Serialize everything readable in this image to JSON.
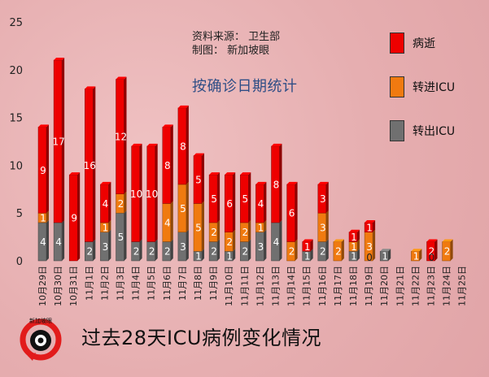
{
  "source": {
    "line1": "资料来源： 卫生部",
    "line2": "制图： 新加坡眼"
  },
  "subtitle": "按确诊日期统计",
  "bottom_title": "过去28天ICU病例变化情况",
  "logo_text": "新加坡眼",
  "legend": [
    {
      "label": "病逝",
      "color": "#ee0000"
    },
    {
      "label": "转进ICU",
      "color": "#f07a10"
    },
    {
      "label": "转出ICU",
      "color": "#707070"
    }
  ],
  "chart_data": {
    "type": "bar",
    "stacked": true,
    "categories": [
      "10月29日",
      "10月30日",
      "10月31日",
      "11月1日",
      "11月2日",
      "11月3日",
      "11月4日",
      "11月5日",
      "11月6日",
      "11月7日",
      "11月8日",
      "11月9日",
      "11月10日",
      "11月11日",
      "11月12日",
      "11月13日",
      "11月14日",
      "11月15日",
      "11月16日",
      "11月17日",
      "11月18日",
      "11月19日",
      "11月20日",
      "11月21日",
      "11月22日",
      "11月23日",
      "11月24日",
      "11月25日"
    ],
    "ylim": [
      0,
      25
    ],
    "yticks": [
      0,
      5,
      10,
      15,
      20,
      25
    ],
    "series": [
      {
        "name": "转出ICU",
        "color": "#707070",
        "values": [
          4,
          4,
          0,
          2,
          3,
          5,
          2,
          2,
          2,
          3,
          1,
          2,
          1,
          2,
          3,
          4,
          0,
          1,
          2,
          0,
          1,
          0,
          1,
          0,
          0,
          0,
          0,
          0
        ]
      },
      {
        "name": "转进ICU",
        "color": "#f07a10",
        "values": [
          1,
          0,
          0,
          0,
          1,
          2,
          0,
          0,
          4,
          5,
          5,
          2,
          2,
          2,
          1,
          0,
          2,
          0,
          3,
          2,
          1,
          3,
          0,
          0,
          1,
          0,
          2,
          0
        ]
      },
      {
        "name": "病逝",
        "color": "#ee0000",
        "values": [
          9,
          17,
          9,
          16,
          4,
          12,
          10,
          10,
          8,
          8,
          5,
          5,
          6,
          5,
          4,
          8,
          6,
          1,
          3,
          0,
          1,
          1,
          0,
          0,
          0,
          2,
          0,
          0
        ]
      }
    ],
    "zero_labels": [
      21,
      25
    ]
  }
}
